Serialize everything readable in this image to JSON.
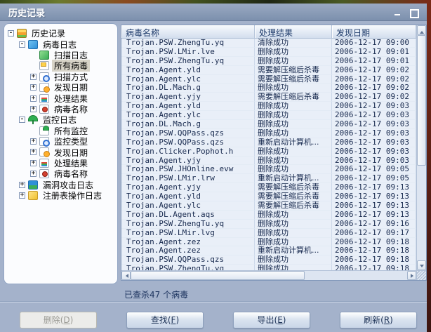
{
  "window": {
    "title": "历史记录"
  },
  "tree": {
    "items": [
      {
        "label": "历史记录",
        "cls": "lvl0",
        "exp": "exp-minus",
        "icon": "ic-books"
      },
      {
        "label": "病毒日志",
        "cls": "lvl1",
        "exp": "exp-minus",
        "icon": "ic-book-blue"
      },
      {
        "label": "扫描日志",
        "cls": "lvl2",
        "exp": "exp-none",
        "icon": "ic-book-green"
      },
      {
        "label": "所有病毒",
        "cls": "lvl2 sel",
        "exp": "exp-none",
        "icon": "ic-page-mark"
      },
      {
        "label": "扫描方式",
        "cls": "lvl2",
        "exp": "exp-plus",
        "icon": "ic-magnifier"
      },
      {
        "label": "发现日期",
        "cls": "lvl2",
        "exp": "exp-plus",
        "icon": "ic-clock"
      },
      {
        "label": "处理结果",
        "cls": "lvl2",
        "exp": "exp-plus",
        "icon": "ic-result"
      },
      {
        "label": "病毒名称",
        "cls": "lvl2",
        "exp": "exp-plus",
        "icon": "ic-bug"
      },
      {
        "label": "监控日志",
        "cls": "lvl1",
        "exp": "exp-minus",
        "icon": "ic-umbrella"
      },
      {
        "label": "所有监控",
        "cls": "lvl2",
        "exp": "exp-none",
        "icon": "ic-page-umbrella"
      },
      {
        "label": "监控类型",
        "cls": "lvl2",
        "exp": "exp-plus",
        "icon": "ic-magnifier"
      },
      {
        "label": "发现日期",
        "cls": "lvl2",
        "exp": "exp-plus",
        "icon": "ic-clock"
      },
      {
        "label": "处理结果",
        "cls": "lvl2",
        "exp": "exp-plus",
        "icon": "ic-result"
      },
      {
        "label": "病毒名称",
        "cls": "lvl2",
        "exp": "exp-plus",
        "icon": "ic-bug"
      },
      {
        "label": "漏洞攻击日志",
        "cls": "lvl1",
        "exp": "exp-plus",
        "icon": "ic-books-2"
      },
      {
        "label": "注册表操作日志",
        "cls": "lvl1",
        "exp": "exp-plus",
        "icon": "ic-book-yellow"
      }
    ]
  },
  "table": {
    "columns": [
      "病毒名称",
      "处理结果",
      "发现日期"
    ],
    "rows": [
      {
        "name": "Trojan.PSW.ZhengTu.yq",
        "result": "清除成功",
        "date": "2006-12-17 09:00"
      },
      {
        "name": "Trojan.PSW.LMir.lve",
        "result": "删除成功",
        "date": "2006-12-17 09:01"
      },
      {
        "name": "Trojan.PSW.ZhengTu.yq",
        "result": "删除成功",
        "date": "2006-12-17 09:01"
      },
      {
        "name": "Trojan.Agent.yld",
        "result": "需要解压缩后杀毒",
        "date": "2006-12-17 09:02"
      },
      {
        "name": "Trojan.Agent.ylc",
        "result": "需要解压缩后杀毒",
        "date": "2006-12-17 09:02"
      },
      {
        "name": "Trojan.DL.Mach.g",
        "result": "删除成功",
        "date": "2006-12-17 09:02"
      },
      {
        "name": "Trojan.Agent.yjy",
        "result": "需要解压缩后杀毒",
        "date": "2006-12-17 09:02"
      },
      {
        "name": "Trojan.Agent.yld",
        "result": "删除成功",
        "date": "2006-12-17 09:03"
      },
      {
        "name": "Trojan.Agent.ylc",
        "result": "删除成功",
        "date": "2006-12-17 09:03"
      },
      {
        "name": "Trojan.DL.Mach.g",
        "result": "删除成功",
        "date": "2006-12-17 09:03"
      },
      {
        "name": "Trojan.PSW.QQPass.qzs",
        "result": "删除成功",
        "date": "2006-12-17 09:03"
      },
      {
        "name": "Trojan.PSW.QQPass.qzs",
        "result": "重新启动计算机...",
        "date": "2006-12-17 09:03"
      },
      {
        "name": "Trojan.Clicker.Pophot.h",
        "result": "删除成功",
        "date": "2006-12-17 09:03"
      },
      {
        "name": "Trojan.Agent.yjy",
        "result": "删除成功",
        "date": "2006-12-17 09:03"
      },
      {
        "name": "Trojan.PSW.JHOnline.evw",
        "result": "删除成功",
        "date": "2006-12-17 09:05"
      },
      {
        "name": "Trojan.PSW.LMir.lrw",
        "result": "重新启动计算机...",
        "date": "2006-12-17 09:05"
      },
      {
        "name": "Trojan.Agent.yjy",
        "result": "需要解压缩后杀毒",
        "date": "2006-12-17 09:13"
      },
      {
        "name": "Trojan.Agent.yld",
        "result": "需要解压缩后杀毒",
        "date": "2006-12-17 09:13"
      },
      {
        "name": "Trojan.Agent.ylc",
        "result": "需要解压缩后杀毒",
        "date": "2006-12-17 09:13"
      },
      {
        "name": "Trojan.DL.Agent.aqs",
        "result": "删除成功",
        "date": "2006-12-17 09:13"
      },
      {
        "name": "Trojan.PSW.ZhengTu.yq",
        "result": "删除成功",
        "date": "2006-12-17 09:16"
      },
      {
        "name": "Trojan.PSW.LMir.lvg",
        "result": "删除成功",
        "date": "2006-12-17 09:17"
      },
      {
        "name": "Trojan.Agent.zez",
        "result": "删除成功",
        "date": "2006-12-17 09:18"
      },
      {
        "name": "Trojan.Agent.zez",
        "result": "重新启动计算机...",
        "date": "2006-12-17 09:18"
      },
      {
        "name": "Trojan.PSW.QQPass.qzs",
        "result": "删除成功",
        "date": "2006-12-17 09:18"
      },
      {
        "name": "Trojan.PSW.ZhengTu.yq",
        "result": "删除成功",
        "date": "2006-12-17 09:18"
      }
    ]
  },
  "status": {
    "text": "已查杀47 个病毒"
  },
  "buttons": [
    {
      "prefix": "删除(",
      "key": "D",
      "suffix": ")",
      "cls": "btn-disabled"
    },
    {
      "prefix": "查找(",
      "key": "F",
      "suffix": ")",
      "cls": ""
    },
    {
      "prefix": "导出(",
      "key": "E",
      "suffix": ")",
      "cls": ""
    },
    {
      "prefix": "刷新(",
      "key": "R",
      "suffix": ")",
      "cls": ""
    }
  ]
}
